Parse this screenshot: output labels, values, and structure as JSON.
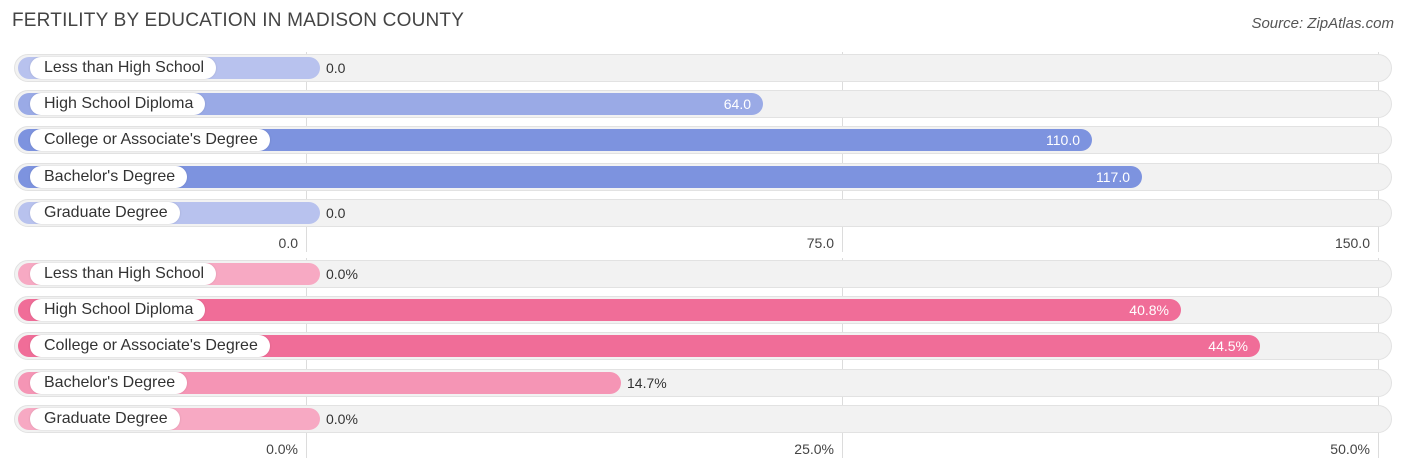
{
  "title": "FERTILITY BY EDUCATION IN MADISON COUNTY",
  "source": "Source: ZipAtlas.com",
  "chart_data": [
    {
      "type": "bar",
      "orientation": "horizontal",
      "categories": [
        "Less than High School",
        "High School Diploma",
        "College or Associate's Degree",
        "Bachelor's Degree",
        "Graduate Degree"
      ],
      "values": [
        0.0,
        64.0,
        110.0,
        117.0,
        0.0
      ],
      "value_labels": [
        "0.0",
        "64.0",
        "110.0",
        "117.0",
        "0.0"
      ],
      "xlim": [
        0,
        150
      ],
      "ticks": [
        0,
        75,
        150
      ],
      "tick_labels": [
        "0.0",
        "75.0",
        "150.0"
      ],
      "colors": [
        "#b8c2ee",
        "#9aaae6",
        "#7d93df",
        "#7d93df",
        "#b8c2ee"
      ],
      "grid": true
    },
    {
      "type": "bar",
      "orientation": "horizontal",
      "categories": [
        "Less than High School",
        "High School Diploma",
        "College or Associate's Degree",
        "Bachelor's Degree",
        "Graduate Degree"
      ],
      "values": [
        0.0,
        40.8,
        44.5,
        14.7,
        0.0
      ],
      "value_labels": [
        "0.0%",
        "40.8%",
        "44.5%",
        "14.7%",
        "0.0%"
      ],
      "xlim": [
        0,
        50
      ],
      "ticks": [
        0,
        25,
        50
      ],
      "tick_labels": [
        "0.0%",
        "25.0%",
        "50.0%"
      ],
      "colors": [
        "#f7a9c3",
        "#f06d98",
        "#f06d98",
        "#f595b5",
        "#f7a9c3"
      ],
      "grid": true
    }
  ]
}
